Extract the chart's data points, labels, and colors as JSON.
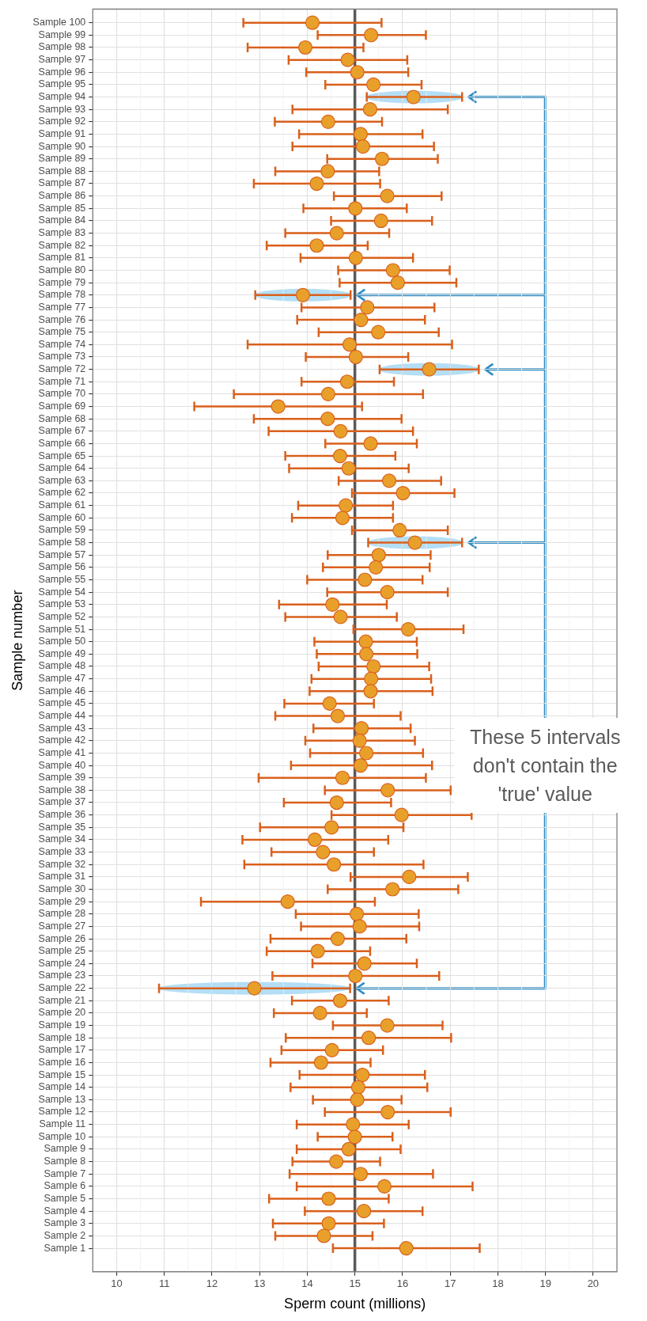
{
  "chart_data": {
    "type": "scatter",
    "orientation": "horizontal",
    "xlabel": "Sperm count (millions)",
    "ylabel": "Sample number",
    "categories": [
      "Sample 100",
      "Sample 99",
      "Sample 98",
      "Sample 97",
      "Sample 96",
      "Sample 95",
      "Sample 94",
      "Sample 93",
      "Sample 92",
      "Sample 91",
      "Sample 90",
      "Sample 89",
      "Sample 88",
      "Sample 87",
      "Sample 86",
      "Sample 85",
      "Sample 84",
      "Sample 83",
      "Sample 82",
      "Sample 81",
      "Sample 80",
      "Sample 79",
      "Sample 78",
      "Sample 77",
      "Sample 76",
      "Sample 75",
      "Sample 74",
      "Sample 73",
      "Sample 72",
      "Sample 71",
      "Sample 70",
      "Sample 69",
      "Sample 68",
      "Sample 67",
      "Sample 66",
      "Sample 65",
      "Sample 64",
      "Sample 63",
      "Sample 62",
      "Sample 61",
      "Sample 60",
      "Sample 59",
      "Sample 58",
      "Sample 57",
      "Sample 56",
      "Sample 55",
      "Sample 54",
      "Sample 53",
      "Sample 52",
      "Sample 51",
      "Sample 50",
      "Sample 49",
      "Sample 48",
      "Sample 47",
      "Sample 46",
      "Sample 45",
      "Sample 44",
      "Sample 43",
      "Sample 42",
      "Sample 41",
      "Sample 40",
      "Sample 39",
      "Sample 38",
      "Sample 37",
      "Sample 36",
      "Sample 35",
      "Sample 34",
      "Sample 33",
      "Sample 32",
      "Sample 31",
      "Sample 30",
      "Sample 29",
      "Sample 28",
      "Sample 27",
      "Sample 26",
      "Sample 25",
      "Sample 24",
      "Sample 23",
      "Sample 22",
      "Sample 21",
      "Sample 20",
      "Sample 19",
      "Sample 18",
      "Sample 17",
      "Sample 16",
      "Sample 15",
      "Sample 14",
      "Sample 13",
      "Sample 12",
      "Sample 11",
      "Sample 10",
      "Sample 9",
      "Sample 8",
      "Sample 7",
      "Sample 6",
      "Sample 5",
      "Sample 4",
      "Sample 3",
      "Sample 2",
      "Sample 1"
    ],
    "values": [
      14.11,
      15.34,
      13.96,
      14.85,
      15.05,
      15.39,
      16.23,
      15.32,
      14.44,
      15.12,
      15.17,
      15.57,
      14.43,
      14.2,
      15.68,
      15.01,
      15.55,
      14.62,
      14.2,
      15.02,
      15.8,
      15.9,
      13.91,
      15.26,
      15.13,
      15.49,
      14.89,
      15.02,
      16.56,
      14.84,
      14.44,
      13.39,
      14.43,
      14.7,
      15.33,
      14.69,
      14.87,
      15.72,
      16.01,
      14.81,
      14.74,
      15.94,
      16.26,
      15.5,
      15.44,
      15.21,
      15.68,
      14.53,
      14.7,
      16.12,
      15.23,
      15.24,
      15.39,
      15.34,
      15.33,
      14.47,
      14.64,
      15.14,
      15.1,
      15.24,
      15.12,
      14.74,
      15.69,
      14.62,
      15.98,
      14.51,
      14.16,
      14.33,
      14.56,
      16.14,
      15.79,
      13.59,
      15.04,
      15.1,
      14.64,
      14.22,
      15.2,
      15.01,
      12.89,
      14.69,
      14.27,
      15.68,
      15.29,
      14.52,
      14.29,
      15.16,
      15.07,
      15.05,
      15.69,
      14.96,
      15.0,
      14.87,
      14.61,
      15.12,
      15.62,
      14.45,
      15.19,
      14.45,
      14.35,
      16.08
    ],
    "errors": [
      [
        12.66,
        15.56
      ],
      [
        14.22,
        16.49
      ],
      [
        12.75,
        15.18
      ],
      [
        13.61,
        16.1
      ],
      [
        13.98,
        16.12
      ],
      [
        14.38,
        16.4
      ],
      [
        15.25,
        17.25
      ],
      [
        13.69,
        16.95
      ],
      [
        13.32,
        15.57
      ],
      [
        13.83,
        16.42
      ],
      [
        13.69,
        16.66
      ],
      [
        14.42,
        16.74
      ],
      [
        13.33,
        15.51
      ],
      [
        12.88,
        15.53
      ],
      [
        14.56,
        16.82
      ],
      [
        13.92,
        16.09
      ],
      [
        14.5,
        16.62
      ],
      [
        13.54,
        15.72
      ],
      [
        13.15,
        15.27
      ],
      [
        13.86,
        16.22
      ],
      [
        14.65,
        16.99
      ],
      [
        14.68,
        17.13
      ],
      [
        12.91,
        14.91
      ],
      [
        13.88,
        16.67
      ],
      [
        13.79,
        16.47
      ],
      [
        14.24,
        16.76
      ],
      [
        12.75,
        17.04
      ],
      [
        13.97,
        16.12
      ],
      [
        15.52,
        17.6
      ],
      [
        13.88,
        15.82
      ],
      [
        12.46,
        16.43
      ],
      [
        11.63,
        15.15
      ],
      [
        12.88,
        15.98
      ],
      [
        13.19,
        16.22
      ],
      [
        14.38,
        16.3
      ],
      [
        13.54,
        15.85
      ],
      [
        13.62,
        16.13
      ],
      [
        14.66,
        16.81
      ],
      [
        14.94,
        17.09
      ],
      [
        13.81,
        15.8
      ],
      [
        13.68,
        15.8
      ],
      [
        14.94,
        16.95
      ],
      [
        15.28,
        17.25
      ],
      [
        14.43,
        16.59
      ],
      [
        14.33,
        16.57
      ],
      [
        14.0,
        16.42
      ],
      [
        14.42,
        16.95
      ],
      [
        13.41,
        15.67
      ],
      [
        13.54,
        15.88
      ],
      [
        14.97,
        17.28
      ],
      [
        14.15,
        16.3
      ],
      [
        14.2,
        16.31
      ],
      [
        14.24,
        16.56
      ],
      [
        14.09,
        16.6
      ],
      [
        14.05,
        16.63
      ],
      [
        13.52,
        15.4
      ],
      [
        13.33,
        15.96
      ],
      [
        14.13,
        16.17
      ],
      [
        13.96,
        16.26
      ],
      [
        14.06,
        16.43
      ],
      [
        13.66,
        16.62
      ],
      [
        12.98,
        16.49
      ],
      [
        14.37,
        17.01
      ],
      [
        13.51,
        15.76
      ],
      [
        14.51,
        17.45
      ],
      [
        13.01,
        16.02
      ],
      [
        12.64,
        15.7
      ],
      [
        13.25,
        15.4
      ],
      [
        12.68,
        16.44
      ],
      [
        14.91,
        17.37
      ],
      [
        14.43,
        17.17
      ],
      [
        11.77,
        15.42
      ],
      [
        13.76,
        16.34
      ],
      [
        13.87,
        16.35
      ],
      [
        13.23,
        16.08
      ],
      [
        13.15,
        15.32
      ],
      [
        14.11,
        16.3
      ],
      [
        13.27,
        16.77
      ],
      [
        10.89,
        14.9
      ],
      [
        13.68,
        15.71
      ],
      [
        13.3,
        15.25
      ],
      [
        14.54,
        16.84
      ],
      [
        13.55,
        17.02
      ],
      [
        13.46,
        15.59
      ],
      [
        13.23,
        15.33
      ],
      [
        13.84,
        16.47
      ],
      [
        13.65,
        16.52
      ],
      [
        14.12,
        15.98
      ],
      [
        14.37,
        17.01
      ],
      [
        13.78,
        16.13
      ],
      [
        14.22,
        15.79
      ],
      [
        13.78,
        15.96
      ],
      [
        13.69,
        15.53
      ],
      [
        13.63,
        16.64
      ],
      [
        13.78,
        17.47
      ],
      [
        13.2,
        15.71
      ],
      [
        13.95,
        16.42
      ],
      [
        13.28,
        15.61
      ],
      [
        13.33,
        15.37
      ],
      [
        14.54,
        17.62
      ]
    ],
    "color": "#e8a02a",
    "marker": "circle",
    "xlim": [
      9.5,
      20.5
    ],
    "xticks": [
      10,
      11,
      12,
      13,
      14,
      15,
      16,
      17,
      18,
      19,
      20
    ],
    "ref_lines": [
      {
        "axis": "x",
        "value": 15,
        "color": "#595959"
      }
    ],
    "annotations": [
      "These 5 intervals don't contain the 'true' value"
    ],
    "grid": true,
    "legend": false
  }
}
